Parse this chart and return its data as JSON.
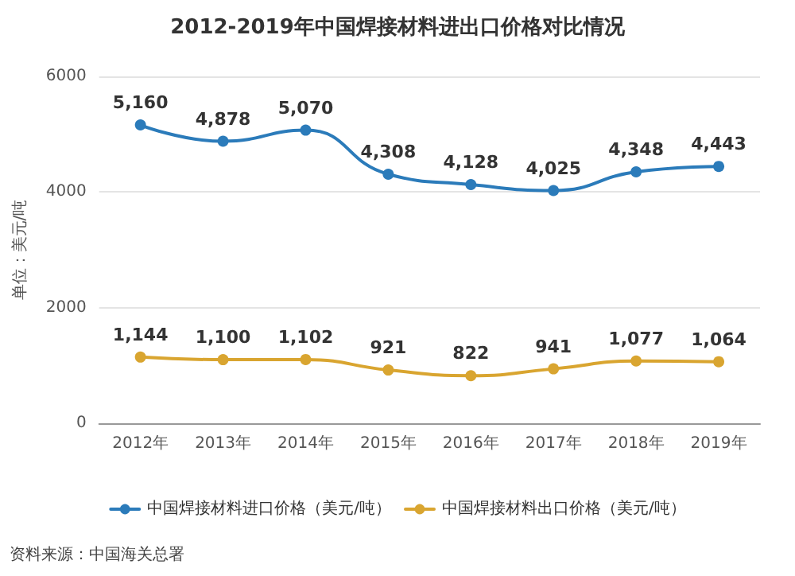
{
  "chart_data": {
    "type": "line",
    "title": "2012-2019年中国焊接材料进出口价格对比情况",
    "ylabel": "单位：美元/吨",
    "categories": [
      "2012年",
      "2013年",
      "2014年",
      "2015年",
      "2016年",
      "2017年",
      "2018年",
      "2019年"
    ],
    "series": [
      {
        "name": "中国焊接材料进口价格（美元/吨）",
        "color": "#2b7bba",
        "values": [
          5160,
          4878,
          5070,
          4308,
          4128,
          4025,
          4348,
          4443
        ],
        "value_labels": [
          "5,160",
          "4,878",
          "5,070",
          "4,308",
          "4,128",
          "4,025",
          "4,348",
          "4,443"
        ]
      },
      {
        "name": "中国焊接材料出口价格（美元/吨）",
        "color": "#d9a530",
        "values": [
          1144,
          1100,
          1102,
          921,
          822,
          941,
          1077,
          1064
        ],
        "value_labels": [
          "1,144",
          "1,100",
          "1,102",
          "921",
          "822",
          "941",
          "1,077",
          "1,064"
        ]
      }
    ],
    "ylim": [
      0,
      6000
    ],
    "yticks": [
      0,
      2000,
      4000,
      6000
    ],
    "grid": "y",
    "legend": "bottom",
    "marker": "circle",
    "line_style": "solid",
    "annotations": [
      "资料来源：中国海关总署"
    ]
  }
}
